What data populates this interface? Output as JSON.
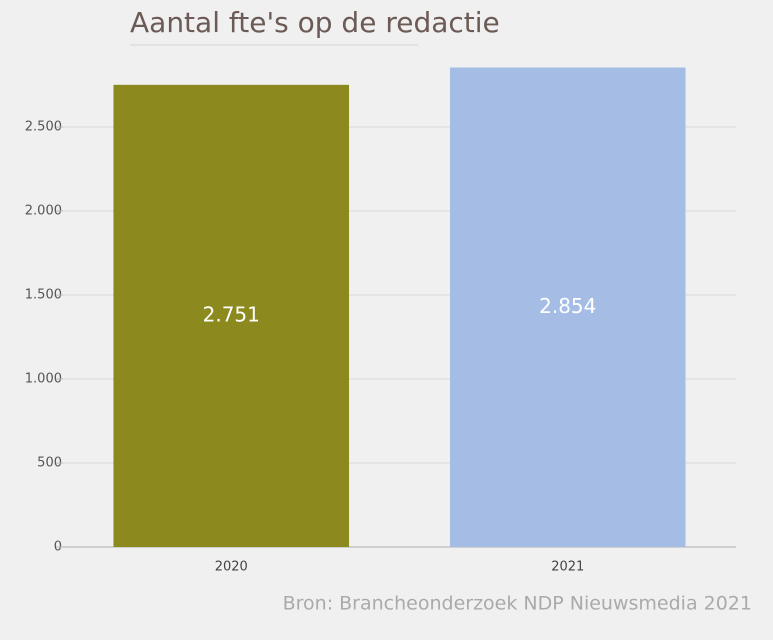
{
  "chart_data": {
    "type": "bar",
    "title": "Aantal fte's op de redactie",
    "categories": [
      "2020",
      "2021"
    ],
    "values": [
      2751,
      2854
    ],
    "value_labels": [
      "2.751",
      "2.854"
    ],
    "colors": [
      "#8c8a1f",
      "#a5bde5"
    ],
    "ylim": [
      0,
      3000
    ],
    "yticks": [
      0,
      500,
      {
        "value": 1000,
        "label": "1.000"
      },
      {
        "value": 1500,
        "label": "1.500"
      },
      {
        "value": 2000,
        "label": "2.000"
      },
      {
        "value": 2500,
        "label": "2.500"
      }
    ],
    "grid": true,
    "source": "Bron: Brancheonderzoek NDP Nieuwsmedia 2021"
  }
}
